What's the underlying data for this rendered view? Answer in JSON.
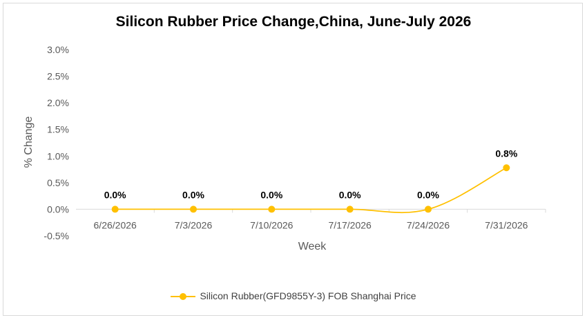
{
  "chart_data": {
    "type": "line",
    "title": "Silicon Rubber Price Change,China, June-July 2026",
    "xlabel": "Week",
    "ylabel": "% Change",
    "categories": [
      "6/26/2026",
      "7/3/2026",
      "7/10/2026",
      "7/17/2026",
      "7/24/2026",
      "7/31/2026"
    ],
    "ylim": [
      -0.5,
      3.0
    ],
    "yticks": [
      "3.0%",
      "2.5%",
      "2.0%",
      "1.5%",
      "1.0%",
      "0.5%",
      "0.0%",
      "-0.5%"
    ],
    "ytick_values": [
      3.0,
      2.5,
      2.0,
      1.5,
      1.0,
      0.5,
      0.0,
      -0.5
    ],
    "series": [
      {
        "name": "Silicon Rubber(GFD9855Y-3) FOB Shanghai Price",
        "values": [
          0.0,
          0.0,
          0.0,
          0.0,
          0.0,
          0.78
        ],
        "labels": [
          "0.0%",
          "0.0%",
          "0.0%",
          "0.0%",
          "0.0%",
          "0.8%"
        ],
        "color": "#FFC000"
      }
    ],
    "grid": false,
    "legend_position": "bottom",
    "smooth": true
  }
}
